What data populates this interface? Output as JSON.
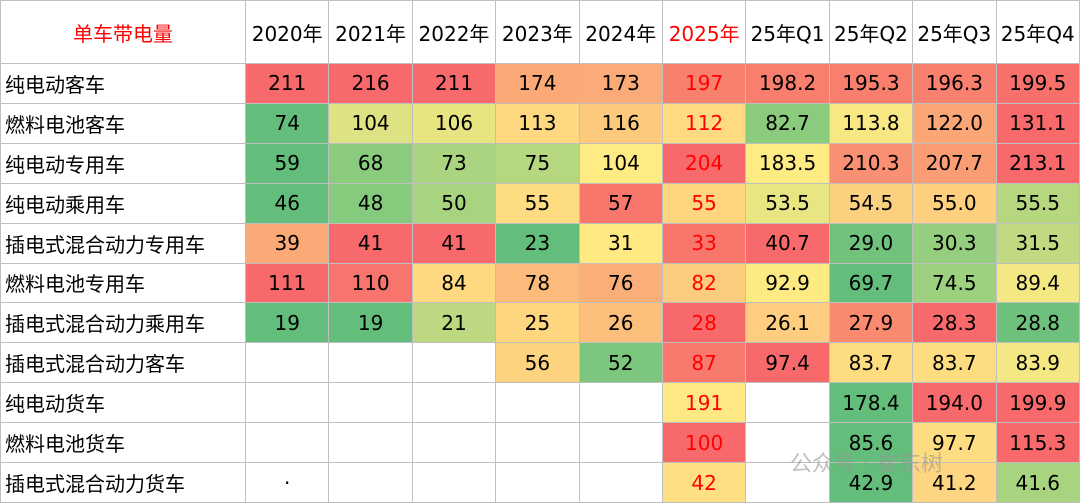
{
  "table": {
    "header": [
      {
        "text": "单车带电量",
        "color": "#ff0000"
      },
      {
        "text": "2020年"
      },
      {
        "text": "2021年"
      },
      {
        "text": "2022年"
      },
      {
        "text": "2023年"
      },
      {
        "text": "2024年"
      },
      {
        "text": "2025年",
        "color": "#ff0000"
      },
      {
        "text": "25年Q1"
      },
      {
        "text": "25年Q2"
      },
      {
        "text": "25年Q3"
      },
      {
        "text": "25年Q4"
      }
    ],
    "rows": [
      {
        "label": "纯电动客车",
        "cells": [
          {
            "text": "211",
            "bg": "#f8696b"
          },
          {
            "text": "216",
            "bg": "#f8696b"
          },
          {
            "text": "211",
            "bg": "#f8696b"
          },
          {
            "text": "174",
            "bg": "#fbaa77"
          },
          {
            "text": "173",
            "bg": "#fbab77"
          },
          {
            "text": "197",
            "bg": "#f8816e",
            "color": "#ff0000"
          },
          {
            "text": "198.2",
            "bg": "#f87e6e"
          },
          {
            "text": "195.3",
            "bg": "#f87f6e"
          },
          {
            "text": "196.3",
            "bg": "#f8806e"
          },
          {
            "text": "199.5",
            "bg": "#f8706c"
          }
        ]
      },
      {
        "label": "燃料电池客车",
        "cells": [
          {
            "text": "74",
            "bg": "#63be7b"
          },
          {
            "text": "104",
            "bg": "#dfe283"
          },
          {
            "text": "106",
            "bg": "#e7e482"
          },
          {
            "text": "113",
            "bg": "#fed981"
          },
          {
            "text": "116",
            "bg": "#fdc97d"
          },
          {
            "text": "112",
            "bg": "#feda81",
            "color": "#ff0000"
          },
          {
            "text": "82.7",
            "bg": "#8acb7e"
          },
          {
            "text": "113.8",
            "bg": "#f7e883"
          },
          {
            "text": "122.0",
            "bg": "#fba677"
          },
          {
            "text": "131.1",
            "bg": "#f8696b"
          }
        ]
      },
      {
        "label": "纯电动专用车",
        "cells": [
          {
            "text": "59",
            "bg": "#63be7b"
          },
          {
            "text": "68",
            "bg": "#8acb7e"
          },
          {
            "text": "73",
            "bg": "#aad47f"
          },
          {
            "text": "75",
            "bg": "#b5d780"
          },
          {
            "text": "104",
            "bg": "#feeb84"
          },
          {
            "text": "204",
            "bg": "#f8696b",
            "color": "#ff0000"
          },
          {
            "text": "183.5",
            "bg": "#feeb84"
          },
          {
            "text": "210.3",
            "bg": "#fa9073"
          },
          {
            "text": "207.7",
            "bg": "#fa9d75"
          },
          {
            "text": "213.1",
            "bg": "#f8696b"
          }
        ]
      },
      {
        "label": "纯电动乘用车",
        "cells": [
          {
            "text": "46",
            "bg": "#63be7b"
          },
          {
            "text": "48",
            "bg": "#86ca7e"
          },
          {
            "text": "50",
            "bg": "#a9d47f"
          },
          {
            "text": "55",
            "bg": "#fedc81"
          },
          {
            "text": "57",
            "bg": "#f8776d"
          },
          {
            "text": "55",
            "bg": "#fed680",
            "color": "#ff0000"
          },
          {
            "text": "53.5",
            "bg": "#e8e583"
          },
          {
            "text": "54.5",
            "bg": "#fbd17f"
          },
          {
            "text": "55.0",
            "bg": "#fecf7f"
          },
          {
            "text": "55.5",
            "bg": "#b6d780"
          }
        ]
      },
      {
        "label": "插电式混合动力专用车",
        "cells": [
          {
            "text": "39",
            "bg": "#fbaa77"
          },
          {
            "text": "41",
            "bg": "#f8696b"
          },
          {
            "text": "41",
            "bg": "#f8696b"
          },
          {
            "text": "23",
            "bg": "#63be7b"
          },
          {
            "text": "31",
            "bg": "#fee983"
          },
          {
            "text": "33",
            "bg": "#f8776d",
            "color": "#ff0000"
          },
          {
            "text": "40.7",
            "bg": "#f8696b"
          },
          {
            "text": "29.0",
            "bg": "#71c27c"
          },
          {
            "text": "30.3",
            "bg": "#95ce7f"
          },
          {
            "text": "31.5",
            "bg": "#c1da81"
          }
        ]
      },
      {
        "label": "燃料电池专用车",
        "cells": [
          {
            "text": "111",
            "bg": "#f8696b"
          },
          {
            "text": "110",
            "bg": "#f8756d"
          },
          {
            "text": "84",
            "bg": "#fed981"
          },
          {
            "text": "78",
            "bg": "#fcbb7a"
          },
          {
            "text": "76",
            "bg": "#fbaf78"
          },
          {
            "text": "82",
            "bg": "#fbcb7e",
            "color": "#ff0000"
          },
          {
            "text": "92.9",
            "bg": "#feea83"
          },
          {
            "text": "69.7",
            "bg": "#63be7b"
          },
          {
            "text": "74.5",
            "bg": "#9dd07f"
          },
          {
            "text": "89.4",
            "bg": "#f3e883"
          }
        ]
      },
      {
        "label": "插电式混合动力乘用车",
        "cells": [
          {
            "text": "19",
            "bg": "#63be7b"
          },
          {
            "text": "19",
            "bg": "#63be7b"
          },
          {
            "text": "21",
            "bg": "#bcd981"
          },
          {
            "text": "25",
            "bg": "#fed680"
          },
          {
            "text": "26",
            "bg": "#fcbf7b"
          },
          {
            "text": "28",
            "bg": "#f8696b",
            "color": "#ff0000"
          },
          {
            "text": "26.1",
            "bg": "#fecd7f"
          },
          {
            "text": "27.9",
            "bg": "#f98a70"
          },
          {
            "text": "28.3",
            "bg": "#f8696b"
          },
          {
            "text": "28.8",
            "bg": "#6ec17c"
          }
        ]
      },
      {
        "label": "插电式混合动力客车",
        "cells": [
          null,
          null,
          null,
          {
            "text": "56",
            "bg": "#fed380"
          },
          {
            "text": "52",
            "bg": "#7cc67d"
          },
          {
            "text": "87",
            "bg": "#f8796d",
            "color": "#ff0000"
          },
          {
            "text": "97.4",
            "bg": "#f8696b"
          },
          {
            "text": "83.7",
            "bg": "#fedd81"
          },
          {
            "text": "83.7",
            "bg": "#fedd81"
          },
          {
            "text": "83.9",
            "bg": "#f3e883"
          }
        ]
      },
      {
        "label": "纯电动货车",
        "cells": [
          null,
          null,
          null,
          null,
          null,
          {
            "text": "191",
            "bg": "#fee883",
            "color": "#ff0000"
          },
          null,
          {
            "text": "178.4",
            "bg": "#63be7b"
          },
          {
            "text": "194.0",
            "bg": "#f8696b"
          },
          {
            "text": "199.9",
            "bg": "#f8696b"
          }
        ]
      },
      {
        "label": "燃料电池货车",
        "cells": [
          null,
          null,
          null,
          null,
          null,
          {
            "text": "100",
            "bg": "#f8696b",
            "color": "#ff0000"
          },
          null,
          {
            "text": "85.6",
            "bg": "#63be7b"
          },
          {
            "text": "97.7",
            "bg": "#fedc81"
          },
          {
            "text": "115.3",
            "bg": "#f8696b"
          }
        ]
      },
      {
        "label": "插电式混合动力货车",
        "cells": [
          {
            "text": "·"
          },
          null,
          null,
          null,
          null,
          {
            "text": "42",
            "bg": "#fee082",
            "color": "#ff0000"
          },
          null,
          {
            "text": "42.9",
            "bg": "#63be7b"
          },
          {
            "text": "41.2",
            "bg": "#fed580"
          },
          {
            "text": "41.6",
            "bg": "#a8d37f"
          }
        ]
      }
    ]
  },
  "watermark": "公众号 · 崔东树"
}
